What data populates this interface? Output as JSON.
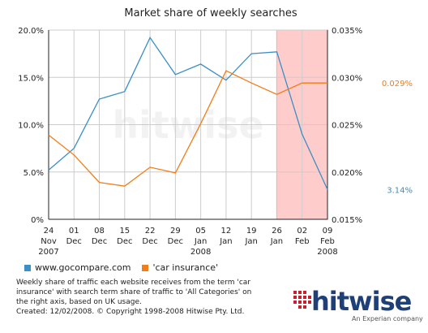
{
  "chart_data": {
    "type": "line",
    "title": "Market share of weekly searches",
    "categories": [
      [
        "24",
        "Nov",
        "2007"
      ],
      [
        "01",
        "Dec",
        ""
      ],
      [
        "08",
        "Dec",
        ""
      ],
      [
        "15",
        "Dec",
        ""
      ],
      [
        "22",
        "Dec",
        ""
      ],
      [
        "29",
        "Dec",
        ""
      ],
      [
        "05",
        "Jan",
        "2008"
      ],
      [
        "12",
        "Jan",
        ""
      ],
      [
        "19",
        "Jan",
        ""
      ],
      [
        "26",
        "Jan",
        ""
      ],
      [
        "02",
        "Feb",
        ""
      ],
      [
        "09",
        "Feb",
        "2008"
      ]
    ],
    "y_left": {
      "ylim": [
        0,
        20
      ],
      "ticks": [
        "0%",
        "5.0%",
        "10.0%",
        "15.0%",
        "20.0%"
      ]
    },
    "y_right": {
      "ylim": [
        0.015,
        0.035
      ],
      "ticks": [
        "0.015%",
        "0.020%",
        "0.025%",
        "0.030%",
        "0.035%"
      ]
    },
    "series": [
      {
        "name": "www.gocompare.com",
        "axis": "left",
        "color": "#3a8fc4",
        "values": [
          5.2,
          7.5,
          12.7,
          13.5,
          19.2,
          15.3,
          16.4,
          14.7,
          17.5,
          17.7,
          9.0,
          3.14
        ],
        "end_label": "3.14%"
      },
      {
        "name": "'car insurance'",
        "axis": "right",
        "color": "#f07d18",
        "values": [
          0.0239,
          0.0218,
          0.0189,
          0.0185,
          0.0205,
          0.0199,
          0.0251,
          0.0307,
          0.0294,
          0.0282,
          0.0294,
          0.0294
        ],
        "end_label": "0.029%"
      }
    ],
    "highlight": {
      "from_index": 9,
      "to_index": 11,
      "color": "#ffcccc",
      "border": "#cc2222"
    },
    "watermark": "hitwise",
    "grid": true
  },
  "footnote": {
    "line1": "Weekly share of traffic each website receives from the term 'car",
    "line2": "insurance' with search term share of traffic to 'All Categories' on",
    "line3": "the right axis, based on UK usage.",
    "line4": "Created: 12/02/2008. © Copyright 1998-2008 Hitwise Pty. Ltd."
  },
  "brand": {
    "name": "hitwise",
    "tagline": "An Experian company"
  }
}
